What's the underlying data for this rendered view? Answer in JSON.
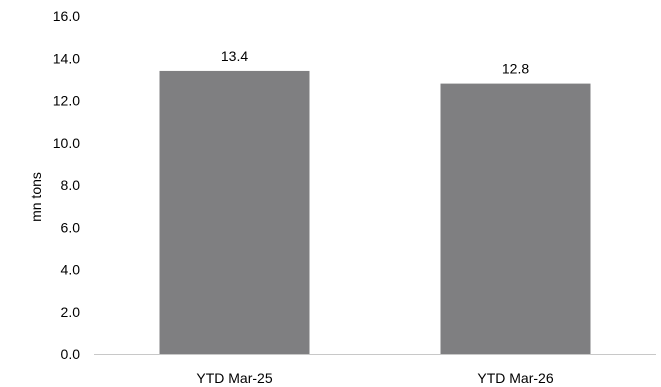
{
  "chart_data": {
    "type": "bar",
    "categories": [
      "YTD Mar-25",
      "YTD Mar-26"
    ],
    "values": [
      13.4,
      12.8
    ],
    "value_labels": [
      "13.4",
      "12.8"
    ],
    "title": "",
    "xlabel": "",
    "ylabel": "mn tons",
    "ylim": [
      0,
      16
    ],
    "yticks": [
      "0.0",
      "2.0",
      "4.0",
      "6.0",
      "8.0",
      "10.0",
      "12.0",
      "14.0",
      "16.0"
    ],
    "grid": false,
    "legend": "none",
    "bar_color": "#7f7f81",
    "axis_color": "#c8c8c8"
  }
}
